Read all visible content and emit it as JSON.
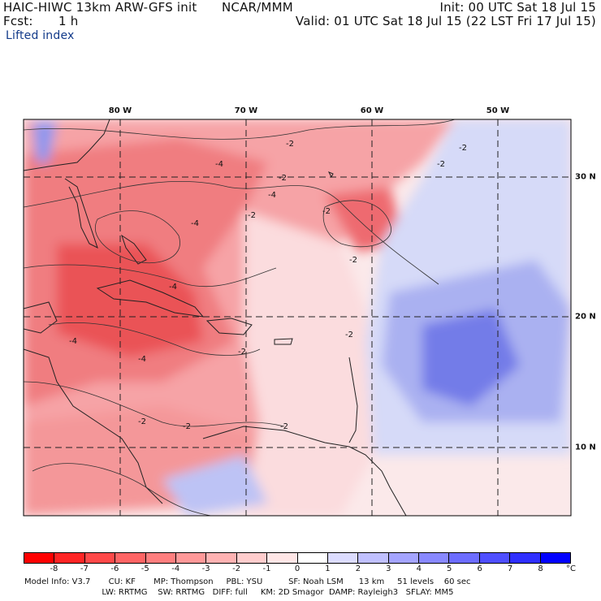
{
  "header": {
    "model": "HAIC-HIWC 13km ARW-GFS init",
    "org": "NCAR/MMM",
    "init": "Init: 00 UTC Sat 18 Jul 15",
    "fcst_label": "Fcst:",
    "fcst_value": "1 h",
    "valid": "Valid: 01 UTC Sat 18 Jul 15 (22 LST Fri 17 Jul 15)",
    "field": "Lifted index"
  },
  "map": {
    "lon_labels": [
      "80 W",
      "70 W",
      "60 W",
      "50 W"
    ],
    "lat_labels": [
      "30 N",
      "20 N",
      "10 N"
    ],
    "contour_labels": [
      "-2",
      "-4"
    ],
    "colors": {
      "neg_strong": "#e8333a",
      "neg_mid": "#f06a6e",
      "neg_light": "#f8aeb0",
      "neutral": "#fbe9ea",
      "pos_light": "#c8cdf6",
      "pos_mid": "#8f97ee",
      "pos_strong": "#5560e4"
    }
  },
  "colorbar": {
    "ticks": [
      "-8",
      "-7",
      "-6",
      "-5",
      "-4",
      "-3",
      "-2",
      "-1",
      "0",
      "1",
      "2",
      "3",
      "4",
      "5",
      "6",
      "7",
      "8"
    ],
    "unit": "°C",
    "colors": [
      "#ff0000",
      "#ff2424",
      "#ff4848",
      "#ff6464",
      "#ff7e7e",
      "#ff9898",
      "#ffb2b2",
      "#ffcccc",
      "#ffe6e6",
      "#ffffff",
      "#dcdcff",
      "#c0c0ff",
      "#a4a4ff",
      "#8888ff",
      "#6c6cff",
      "#4e4eff",
      "#2e2eff",
      "#0000ff"
    ]
  },
  "footer": {
    "line1": "Model Info: V3.7       CU: KF       MP: Thompson     PBL: YSU          SF: Noah LSM      13 km     51 levels    60 sec",
    "line2": "                              LW: RRTMG    SW: RRTMG   DIFF: full     KM: 2D Smagor  DAMP: Rayleigh3   SFLAY: MM5"
  }
}
